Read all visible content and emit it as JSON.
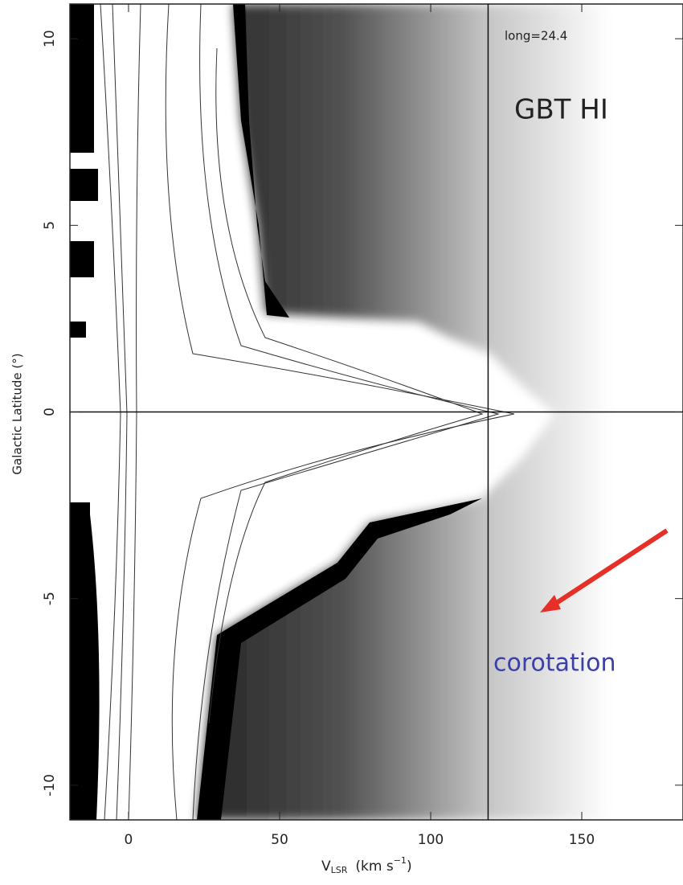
{
  "chart_data": {
    "type": "position-velocity",
    "annotations": {
      "label": "long=24.4",
      "title": "GBT HI",
      "feature": "corotation"
    },
    "xlabel": {
      "main": "V",
      "sub": "LSR",
      "unit": "(km s",
      "sup": "−1",
      "close": ")"
    },
    "ylabel": "Galactic Latitude (°)",
    "xlim": [
      -19.4,
      183.5
    ],
    "xticks": [
      0,
      50,
      100,
      150
    ],
    "ylim": [
      -10.93,
      10.93
    ],
    "yticks": [
      -10,
      -5,
      0,
      5,
      10
    ],
    "vlines": [
      119
    ],
    "hlines": [
      0
    ]
  }
}
